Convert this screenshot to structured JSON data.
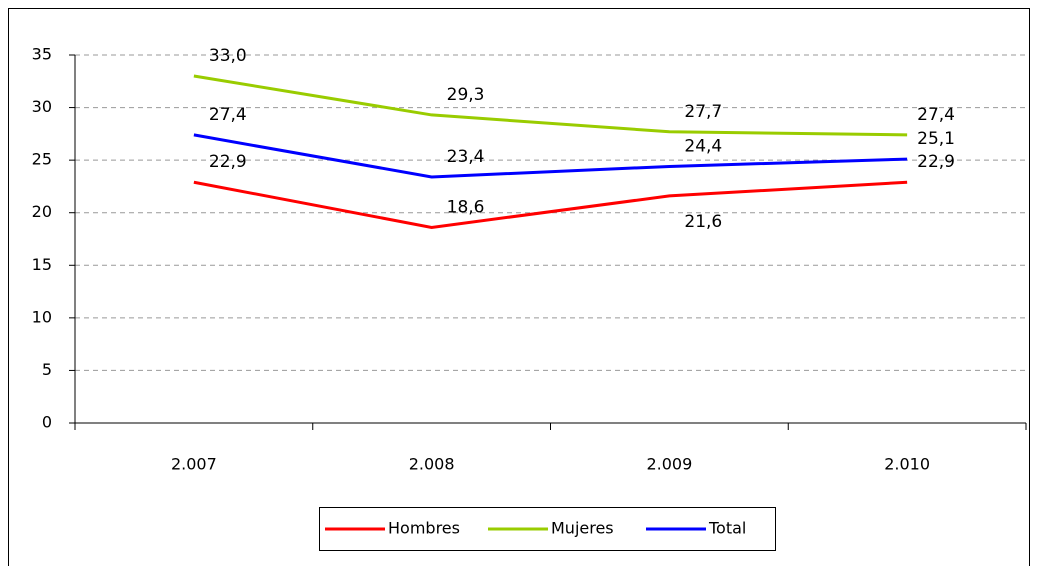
{
  "chart_data": {
    "type": "line",
    "categories": [
      "2.007",
      "2.008",
      "2.009",
      "2.010"
    ],
    "series": [
      {
        "name": "Hombres",
        "color": "#ff0000",
        "values": [
          22.9,
          18.6,
          21.6,
          22.9
        ],
        "value_labels": [
          "22,9",
          "18,6",
          "21,6",
          "22,9"
        ]
      },
      {
        "name": "Mujeres",
        "color": "#99cc00",
        "values": [
          33.0,
          29.3,
          27.7,
          27.4
        ],
        "value_labels": [
          "33,0",
          "29,3",
          "27,7",
          "27,4"
        ]
      },
      {
        "name": "Total",
        "color": "#0000ff",
        "values": [
          27.4,
          23.4,
          24.4,
          25.1
        ],
        "value_labels": [
          "27,4",
          "23,4",
          "24,4",
          "25,1"
        ]
      }
    ],
    "ylim": [
      0,
      35
    ],
    "yticks": [
      0,
      5,
      10,
      15,
      20,
      25,
      30,
      35
    ],
    "grid": true,
    "legend": "bottom"
  }
}
